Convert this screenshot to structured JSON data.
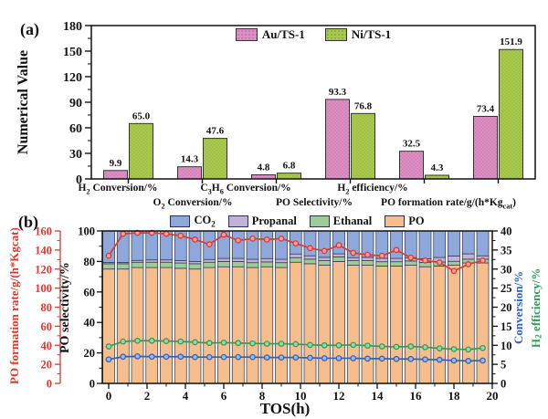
{
  "chart_data": [
    {
      "id": "a",
      "type": "bar",
      "panel_label": "(a)",
      "ylabel": "Numerical Value",
      "ylim": [
        0,
        180
      ],
      "yticks": [
        0,
        30,
        60,
        90,
        120,
        150,
        180
      ],
      "legend": [
        "Au/TS-1",
        "Ni/TS-1"
      ],
      "colors": {
        "au": "#DE8FC4",
        "au_dot": "#C473AA",
        "ni": "#A9C84E",
        "ni_dot": "#93B23A",
        "edge": "#333333"
      },
      "categories_runs": [
        [
          {
            "t": "H"
          },
          {
            "t": "2",
            "sub": true
          },
          {
            "t": " Conversion/%"
          }
        ],
        [
          {
            "t": "O"
          },
          {
            "t": "2",
            "sub": true
          },
          {
            "t": " Conversion/%"
          }
        ],
        [
          {
            "t": "C"
          },
          {
            "t": "3",
            "sub": true
          },
          {
            "t": "H"
          },
          {
            "t": "6",
            "sub": true
          },
          {
            "t": " Conversion/%"
          }
        ],
        [
          {
            "t": "PO Selectivity/%"
          }
        ],
        [
          {
            "t": "H"
          },
          {
            "t": "2",
            "sub": true
          },
          {
            "t": " efficiency/%"
          }
        ],
        [
          {
            "t": "PO formation rate/g/(h*Kg"
          },
          {
            "t": "cat",
            "sub": true
          },
          {
            "t": ")"
          }
        ]
      ],
      "series": [
        {
          "name": "Au/TS-1",
          "values": [
            9.9,
            14.3,
            4.8,
            93.3,
            32.5,
            73.4
          ],
          "labels": [
            "9.9",
            "14.3",
            "4.8",
            "93.3",
            "32.5",
            "73.4"
          ]
        },
        {
          "name": "Ni/TS-1",
          "values": [
            65.0,
            47.6,
            6.8,
            76.8,
            4.3,
            151.9
          ],
          "labels": [
            "65.0",
            "47.6",
            "6.8",
            "76.8",
            "4.3",
            "151.9"
          ]
        }
      ]
    },
    {
      "id": "b",
      "type": "stacked-bar-with-lines",
      "panel_label": "(b)",
      "xlabel": "TOS(h)",
      "xlim": [
        0,
        20
      ],
      "xticks": [
        0,
        2,
        4,
        6,
        8,
        10,
        12,
        14,
        16,
        18,
        20
      ],
      "x": [
        0,
        0.75,
        1.5,
        2.25,
        3,
        3.75,
        4.5,
        5.25,
        6,
        6.75,
        7.5,
        8.25,
        9,
        9.75,
        10.5,
        11.25,
        12,
        12.75,
        13.5,
        14.25,
        15,
        15.75,
        16.5,
        17.25,
        18,
        18.75,
        19.5
      ],
      "stack_order": [
        "PO",
        "Ethanal",
        "Propanal",
        "CO2"
      ],
      "stack_colors": {
        "PO": "#F6BE8D",
        "Ethanal": "#9FCB96",
        "Propanal": "#C3B2D7",
        "CO2": "#8FA8DC"
      },
      "bar_edge": "#26324E",
      "legend": [
        {
          "label_runs": [
            {
              "t": "CO"
            },
            {
              "t": "2",
              "sub": true
            }
          ],
          "color": "#8FA8DC"
        },
        {
          "label_runs": [
            {
              "t": "Propanal"
            }
          ],
          "color": "#C3B2D7"
        },
        {
          "label_runs": [
            {
              "t": "Ethanal"
            }
          ],
          "color": "#9FCB96"
        },
        {
          "label_runs": [
            {
              "t": "PO"
            }
          ],
          "color": "#F6BE8D"
        }
      ],
      "stacks": {
        "PO": [
          75,
          75,
          76,
          76,
          76,
          75.5,
          75,
          76,
          76.5,
          76.5,
          76,
          76.5,
          76,
          79.5,
          78.5,
          77.5,
          80,
          77.5,
          77.5,
          77,
          77,
          77.5,
          76.5,
          77,
          77.5,
          79,
          79
        ],
        "Ethanal": [
          3.5,
          3.5,
          3.5,
          3.5,
          3.5,
          3.5,
          3.5,
          3.5,
          3.5,
          3.5,
          3.2,
          3.2,
          3.2,
          3,
          3,
          3,
          3,
          3,
          3,
          2.8,
          2.8,
          2.8,
          2.8,
          2.6,
          2.6,
          2.5,
          2.5
        ],
        "Propanal": [
          0.8,
          0.8,
          1.2,
          1.5,
          1.5,
          1.5,
          1.5,
          1.8,
          2,
          2,
          2.2,
          2.2,
          2.2,
          2.4,
          2.2,
          2.2,
          2,
          2,
          2.2,
          2.2,
          2.2,
          2.2,
          2.5,
          3,
          3.5,
          3.5,
          2.2
        ],
        "CO2": [
          20.7,
          20.7,
          19.3,
          19,
          19,
          19.5,
          20,
          18.7,
          18,
          18,
          18.6,
          18.1,
          18.6,
          15.1,
          16.3,
          17.3,
          15,
          17.5,
          17.3,
          18,
          18,
          17.5,
          18.2,
          17.4,
          16.4,
          15,
          16.3
        ]
      },
      "lines": [
        {
          "name": "Conversion",
          "axis": "right",
          "color": "#2E62C0",
          "marker_fill": "#9DB8E8",
          "values": [
            6.3,
            7.0,
            7.1,
            7.0,
            7.0,
            7.0,
            6.9,
            6.9,
            6.9,
            6.9,
            6.9,
            6.8,
            6.8,
            6.8,
            6.7,
            6.6,
            6.6,
            6.6,
            6.5,
            6.5,
            6.4,
            6.4,
            6.3,
            6.2,
            6.0,
            5.9,
            6.0
          ]
        },
        {
          "name": "H2 efficiency",
          "axis": "right",
          "color": "#2E9E56",
          "marker_fill": "#9FD4AE",
          "values": [
            9.7,
            11.0,
            11.2,
            11.2,
            11.1,
            11.0,
            10.8,
            10.6,
            10.7,
            10.6,
            10.5,
            10.4,
            10.4,
            10.3,
            10.1,
            10.0,
            10.0,
            10.1,
            9.9,
            9.7,
            9.6,
            9.7,
            9.5,
            9.2,
            9.0,
            8.9,
            9.3
          ]
        },
        {
          "name": "PO formation rate",
          "axis": "red",
          "color": "#E0372E",
          "marker_fill": "#F2A39B",
          "values": [
            134,
            157,
            158,
            158,
            157,
            155,
            151,
            146,
            156,
            150,
            152,
            151,
            152,
            147,
            142,
            139,
            145,
            137,
            135,
            134,
            140,
            132,
            129,
            127,
            118,
            125,
            129
          ]
        }
      ],
      "axes": {
        "red": {
          "label": "PO formation rate/g/(h*Kgcat)",
          "lim": [
            0,
            160
          ],
          "ticks": [
            0,
            20,
            40,
            60,
            80,
            100,
            120,
            140,
            160
          ],
          "color": "#E0372E"
        },
        "selectivity": {
          "label": "PO selectivity/%",
          "lim": [
            0,
            100
          ],
          "ticks": [
            0,
            20,
            40,
            60,
            80,
            100
          ],
          "color": "#111111"
        },
        "right": {
          "lim": [
            0,
            40
          ],
          "ticks": [
            0,
            5,
            10,
            15,
            20,
            25,
            30,
            35,
            40
          ],
          "labels": [
            {
              "runs": [
                {
                  "t": "Conversion/%"
                }
              ],
              "color": "#2E62C0"
            },
            {
              "runs": [
                {
                  "t": "H"
                },
                {
                  "t": "2",
                  "sub": true
                },
                {
                  "t": " efficiency/%"
                }
              ],
              "color": "#2E9E56"
            }
          ]
        }
      }
    }
  ]
}
